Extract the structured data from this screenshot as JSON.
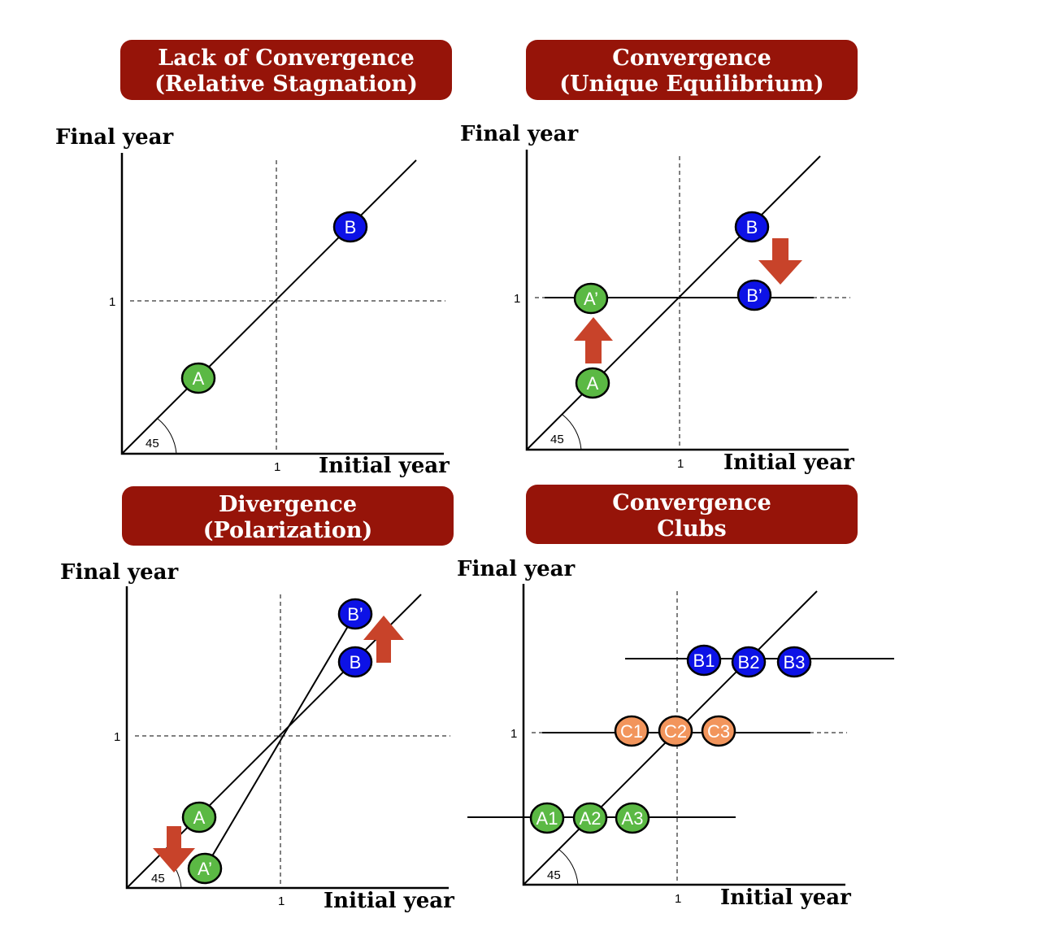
{
  "colors": {
    "banner": "#961409",
    "green": "#5bb944",
    "blue": "#0d12e6",
    "orange": "#f2955c",
    "arrow": "#c8432a"
  },
  "panels": [
    {
      "title_line1": "Lack of Convergence",
      "title_line2": "(Relative Stagnation)",
      "ylabel": "Final year",
      "xlabel": "Initial year",
      "tick_x": "1",
      "tick_y": "1",
      "angle": "45",
      "nodes": {
        "a": "A",
        "b": "B"
      }
    },
    {
      "title_line1": "Convergence",
      "title_line2": "(Unique Equilibrium)",
      "ylabel": "Final year",
      "xlabel": "Initial year",
      "tick_x": "1",
      "tick_y": "1",
      "angle": "45",
      "nodes": {
        "a": "A",
        "a_prime": "A’",
        "b": "B",
        "b_prime": "B’"
      }
    },
    {
      "title_line1": "Divergence",
      "title_line2": "(Polarization)",
      "ylabel": "Final year",
      "xlabel": "Initial year",
      "tick_x": "1",
      "tick_y": "1",
      "angle": "45",
      "nodes": {
        "a": "A",
        "a_prime": "A’",
        "b": "B",
        "b_prime": "B’"
      }
    },
    {
      "title_line1": "Convergence",
      "title_line2": "Clubs",
      "ylabel": "Final year",
      "xlabel": "Initial year",
      "tick_x": "1",
      "tick_y": "1",
      "angle": "45",
      "nodes": {
        "b1": "B1",
        "b2": "B2",
        "b3": "B3",
        "c1": "C1",
        "c2": "C2",
        "c3": "C3",
        "a1": "A1",
        "a2": "A2",
        "a3": "A3"
      }
    }
  ]
}
